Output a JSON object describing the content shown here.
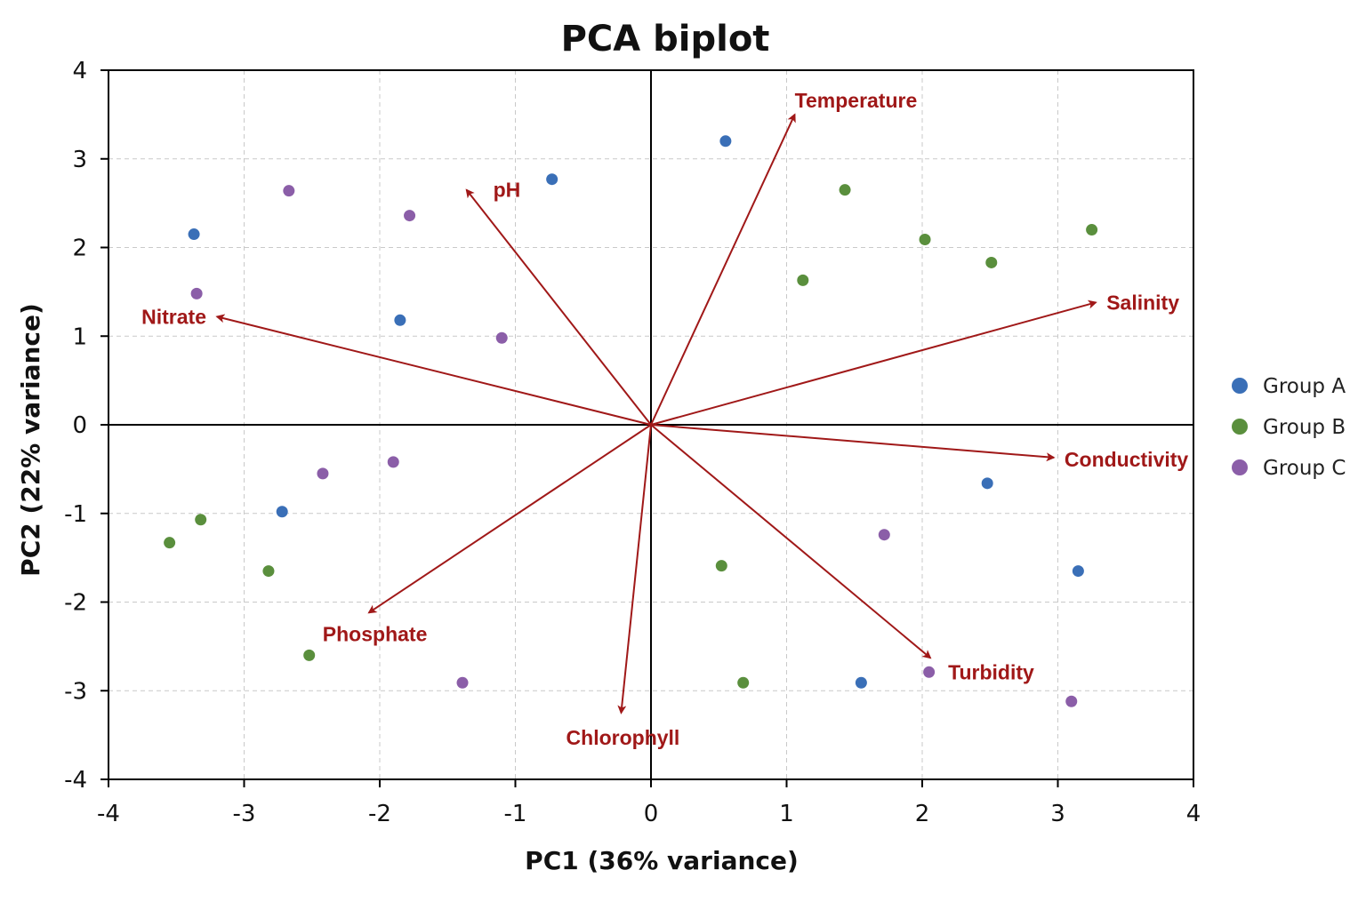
{
  "chart_data": {
    "type": "scatter",
    "title": "PCA biplot",
    "xlabel": "PC1 (36% variance)",
    "ylabel": "PC2 (22% variance)",
    "xlim": [
      -4,
      4
    ],
    "ylim": [
      -4,
      4
    ],
    "xticks": [
      -4,
      -3,
      -2,
      -1,
      0,
      1,
      2,
      3,
      4
    ],
    "yticks": [
      -4,
      -3,
      -2,
      -1,
      0,
      1,
      2,
      3,
      4
    ],
    "xtick_labels": [
      "-4",
      "-3",
      "-2",
      "-1",
      "0",
      "1",
      "2",
      "3",
      "4"
    ],
    "ytick_labels": [
      "-4",
      "-3",
      "-2",
      "-1",
      "0",
      "1",
      "2",
      "3",
      "4"
    ],
    "grid": true,
    "legend_position": "right",
    "series": [
      {
        "name": "Group A",
        "color": "#3a6fb7",
        "points": [
          [
            -3.37,
            2.15
          ],
          [
            -0.73,
            2.77
          ],
          [
            0.55,
            3.2
          ],
          [
            -1.85,
            1.18
          ],
          [
            -2.72,
            -0.98
          ],
          [
            2.48,
            -0.66
          ],
          [
            3.15,
            -1.65
          ],
          [
            1.55,
            -2.91
          ]
        ]
      },
      {
        "name": "Group B",
        "color": "#5a8f3d",
        "points": [
          [
            1.43,
            2.65
          ],
          [
            2.02,
            2.09
          ],
          [
            2.51,
            1.83
          ],
          [
            3.25,
            2.2
          ],
          [
            1.12,
            1.63
          ],
          [
            -3.32,
            -1.07
          ],
          [
            -3.55,
            -1.33
          ],
          [
            -2.82,
            -1.65
          ],
          [
            -2.52,
            -2.6
          ],
          [
            0.52,
            -1.59
          ],
          [
            0.68,
            -2.91
          ]
        ]
      },
      {
        "name": "Group C",
        "color": "#8b5ea8",
        "points": [
          [
            -2.67,
            2.64
          ],
          [
            -1.78,
            2.36
          ],
          [
            -3.35,
            1.48
          ],
          [
            -1.1,
            0.98
          ],
          [
            -2.42,
            -0.55
          ],
          [
            -1.9,
            -0.42
          ],
          [
            1.72,
            -1.24
          ],
          [
            2.05,
            -2.79
          ],
          [
            3.1,
            -3.12
          ],
          [
            -1.39,
            -2.91
          ]
        ]
      }
    ],
    "loadings": {
      "color": "#a01818",
      "vectors": [
        {
          "name": "Temperature",
          "x": 1.06,
          "y": 3.5
        },
        {
          "name": "pH",
          "x": -1.36,
          "y": 2.65
        },
        {
          "name": "Salinity",
          "x": 3.28,
          "y": 1.38
        },
        {
          "name": "Nitrate",
          "x": -3.2,
          "y": 1.22
        },
        {
          "name": "Conductivity",
          "x": 2.97,
          "y": -0.37
        },
        {
          "name": "Phosphate",
          "x": -2.08,
          "y": -2.12
        },
        {
          "name": "Chlorophyll",
          "x": -0.22,
          "y": -3.25
        },
        {
          "name": "Turbidity",
          "x": 2.06,
          "y": -2.63
        }
      ]
    }
  }
}
